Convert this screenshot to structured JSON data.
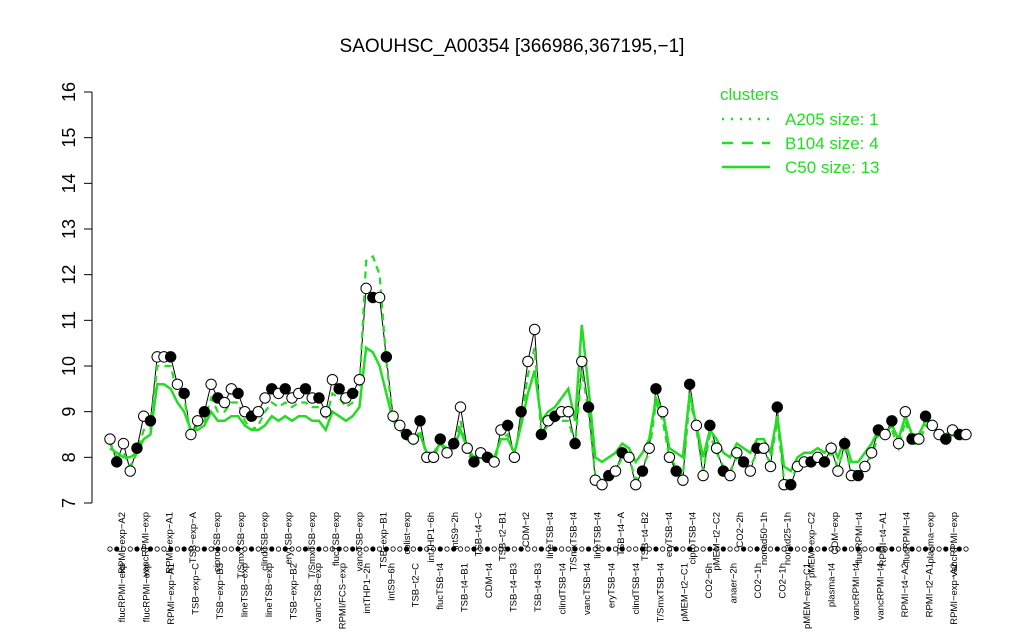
{
  "chart_data": {
    "type": "line",
    "title": "SAOUHSC_A00354 [366986,367195,−1]",
    "xlabel": "",
    "ylabel": "",
    "ylim": [
      7,
      16
    ],
    "y_ticks": [
      7,
      8,
      9,
      10,
      11,
      12,
      13,
      14,
      15,
      16
    ],
    "grid": false,
    "legend_position": "top-right",
    "legend": {
      "title": "clusters",
      "color": "#22dd22",
      "entries": [
        {
          "label": "A205 size: 1",
          "style": "dotted"
        },
        {
          "label": "B104 size: 4",
          "style": "dashed"
        },
        {
          "label": "C50 size: 13",
          "style": "solid"
        }
      ]
    },
    "x_labels_top": [
      "RPMI−exp−A2",
      "vancRPMI−exp",
      "RPMI−exp−A1",
      "TSB−exp−A",
      "ciproTSB−exp",
      "T/SmxTSB−exp",
      "clindTSB−exp",
      "eryTSB−exp",
      "T/SmxTSB−exp",
      "flucTSB−exp",
      "vancTSB−exp",
      "TSB−exp−B1",
      "colist−exp",
      "intTHP1−6h",
      "intS9−2h",
      "TSB−t4−C",
      "TSB−t2−B1",
      "CDM−t2",
      "lineTSB−t4",
      "T/SmxTSB−t4",
      "lineTSB−t4",
      "TSB−t4−A",
      "TSB−t4−B2",
      "eryTSB−t4",
      "ciproTSB−t4",
      "pMEM−t2−C2",
      "CO2−2h",
      "nonad50−1h",
      "nonad25−1h",
      "pMEM−exp−C2",
      "CDM−exp",
      "flucRPMI−t4",
      "RPMI−t4−A1",
      "flucRPMI−t4",
      "plasma−exp",
      "vancRPMI−exp"
    ],
    "x_labels_bottom": [
      "flucRPMI−exp",
      "flucRPMI−exp",
      "RPMI−exp−A1",
      "TSB−exp−C",
      "TSB−exp−B3",
      "lineTSB−exp",
      "lineTSB−exp",
      "TSB−exp−B2",
      "vancTSB−exp",
      "RPMI/FCS−exp",
      "intTHP1−2h",
      "intS9−6h",
      "TSB−t2−C",
      "flucTSB−t4",
      "TSB−t4−B1",
      "CDM−t4",
      "TSB−t4−B3",
      "TSB−t4−B3",
      "clindTSB−t4",
      "vancTSB−t4",
      "eryTSB−t4",
      "clindTSB−t4",
      "T/SmxTSB−t4",
      "pMEM−t2−C1",
      "CO2−6h",
      "anaer−2h",
      "CO2−1h",
      "CO2−1h",
      "pMEM−exp−C1",
      "plasma−t4",
      "vancRPMI−t4",
      "vancRPMI−t4",
      "RPMI−t4−A2",
      "RPMI−t2−A1",
      "RPMI−exp−A2"
    ],
    "n_points": 128,
    "series": [
      {
        "name": "A205 size: 1",
        "style": "points-with-black-line",
        "values": [
          8.4,
          7.9,
          8.3,
          7.7,
          8.2,
          8.9,
          8.8,
          10.2,
          10.2,
          10.2,
          9.6,
          9.4,
          8.5,
          8.8,
          9.0,
          9.6,
          9.3,
          9.2,
          9.5,
          9.4,
          9.0,
          8.9,
          9.0,
          9.3,
          9.5,
          9.4,
          9.5,
          9.3,
          9.4,
          9.5,
          9.3,
          9.3,
          9.0,
          9.7,
          9.5,
          9.3,
          9.4,
          9.7,
          11.7,
          11.5,
          11.5,
          10.2,
          8.9,
          8.7,
          8.5,
          8.4,
          8.8,
          8.0,
          8.0,
          8.4,
          8.1,
          8.3,
          9.1,
          8.2,
          7.9,
          8.1,
          8.0,
          7.9,
          8.6,
          8.7,
          8.0,
          9.0,
          10.1,
          10.8,
          8.5,
          8.8,
          8.9,
          9.0,
          9.0,
          8.3,
          10.1,
          9.1,
          7.5,
          7.4,
          7.6,
          7.7,
          8.1,
          8.0,
          7.4,
          7.7,
          8.2,
          9.5,
          9.0,
          8.0,
          7.7,
          7.5,
          9.6,
          8.7,
          7.6,
          8.7,
          8.2,
          7.7,
          7.6,
          8.1,
          7.9,
          7.7,
          8.2,
          8.2,
          7.8,
          9.1,
          7.4,
          7.4,
          7.8,
          7.9,
          7.9,
          8.0,
          7.9,
          8.2,
          7.7,
          8.3,
          7.6,
          7.6,
          7.8,
          8.1,
          8.6,
          8.5,
          8.8,
          8.3,
          9.0,
          8.4,
          8.4,
          8.9,
          8.7,
          8.5,
          8.4,
          8.6,
          8.5,
          8.5
        ]
      },
      {
        "name": "B104 size: 4",
        "style": "dashed",
        "values": [
          8.3,
          8.0,
          8.1,
          7.8,
          8.1,
          8.6,
          8.6,
          10.0,
          10.0,
          10.0,
          9.4,
          9.3,
          8.5,
          8.7,
          8.8,
          9.3,
          9.0,
          9.0,
          9.2,
          9.2,
          8.8,
          8.6,
          8.7,
          9.0,
          9.2,
          9.1,
          9.2,
          9.1,
          9.2,
          9.2,
          9.1,
          9.1,
          8.8,
          9.4,
          9.3,
          9.1,
          9.2,
          9.5,
          12.3,
          12.4,
          12.0,
          10.1,
          8.8,
          8.6,
          8.4,
          8.3,
          8.6,
          8.0,
          8.0,
          8.3,
          8.1,
          8.2,
          8.8,
          8.1,
          7.9,
          8.0,
          7.9,
          7.9,
          8.4,
          8.5,
          8.0,
          8.8,
          9.8,
          10.4,
          8.5,
          8.7,
          8.8,
          8.8,
          8.8,
          8.3,
          9.9,
          9.0,
          7.6,
          7.5,
          7.6,
          7.7,
          8.0,
          8.0,
          7.5,
          7.8,
          8.1,
          9.2,
          8.8,
          8.0,
          7.8,
          7.6,
          9.3,
          8.6,
          7.7,
          8.5,
          8.1,
          7.8,
          7.7,
          8.0,
          7.9,
          7.8,
          8.1,
          8.1,
          7.9,
          8.8,
          7.5,
          7.5,
          7.8,
          7.9,
          7.9,
          8.0,
          7.9,
          8.1,
          7.8,
          8.2,
          7.7,
          7.7,
          7.9,
          8.0,
          8.5,
          8.4,
          8.6,
          8.2,
          8.8,
          8.3,
          8.3,
          8.7,
          8.6,
          8.4,
          8.3,
          8.5,
          8.4,
          8.4
        ]
      },
      {
        "name": "C50 size: 13",
        "style": "solid",
        "values": [
          8.2,
          8.1,
          8.0,
          8.0,
          8.1,
          8.4,
          8.5,
          9.6,
          9.6,
          9.5,
          9.2,
          9.0,
          8.6,
          8.6,
          8.7,
          9.0,
          8.8,
          8.8,
          8.9,
          8.9,
          8.7,
          8.6,
          8.6,
          8.7,
          8.9,
          8.8,
          8.9,
          8.8,
          8.9,
          8.9,
          8.8,
          8.8,
          8.6,
          9.0,
          8.9,
          8.8,
          8.9,
          9.1,
          10.4,
          10.3,
          10.0,
          9.4,
          8.8,
          8.6,
          8.4,
          8.3,
          8.5,
          8.1,
          8.1,
          8.3,
          8.2,
          8.2,
          8.6,
          8.2,
          8.0,
          8.1,
          8.1,
          8.0,
          8.4,
          8.4,
          8.1,
          8.7,
          9.4,
          9.9,
          8.8,
          9.0,
          9.1,
          9.3,
          9.5,
          8.8,
          10.9,
          9.5,
          8.0,
          7.9,
          8.0,
          8.1,
          8.3,
          8.2,
          7.9,
          8.1,
          8.4,
          9.3,
          9.0,
          8.2,
          8.1,
          8.0,
          9.4,
          8.7,
          8.0,
          8.6,
          8.4,
          8.1,
          8.0,
          8.3,
          8.2,
          8.1,
          8.4,
          8.4,
          8.1,
          8.9,
          7.8,
          7.7,
          8.0,
          8.1,
          8.1,
          8.2,
          8.1,
          8.3,
          8.0,
          8.4,
          7.9,
          7.9,
          8.1,
          8.3,
          8.6,
          8.5,
          8.7,
          8.4,
          8.9,
          8.5,
          8.5,
          8.8,
          8.7,
          8.5,
          8.5,
          8.6,
          8.5,
          8.5
        ]
      }
    ]
  }
}
